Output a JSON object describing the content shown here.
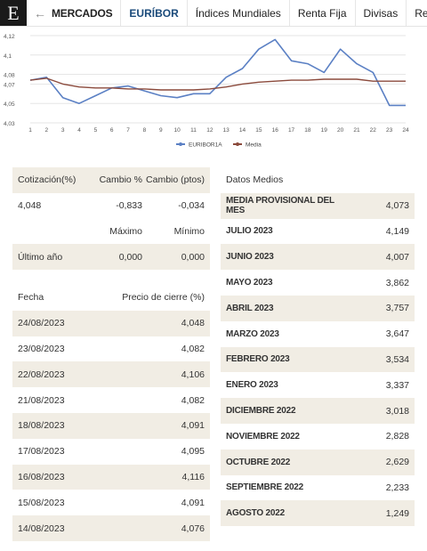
{
  "nav": {
    "logo": "E",
    "back": "←",
    "section": "MERCADOS",
    "items": [
      "EURÍBOR",
      "Índices Mundiales",
      "Renta Fija",
      "Divisas",
      "Recomendaciones"
    ]
  },
  "chart_data": {
    "type": "line",
    "x": [
      1,
      2,
      3,
      4,
      5,
      6,
      7,
      8,
      9,
      10,
      11,
      12,
      13,
      14,
      15,
      16,
      17,
      18,
      19,
      20,
      21,
      22,
      23,
      24
    ],
    "xticks": [
      "1",
      "2",
      "3",
      "4",
      "5",
      "6",
      "7",
      "8",
      "9",
      "10",
      "11",
      "12",
      "13",
      "14",
      "15",
      "16",
      "17",
      "18",
      "19",
      "20",
      "21",
      "22",
      "23",
      "24"
    ],
    "ylim": [
      4.03,
      4.12
    ],
    "yticks": [
      "4,12",
      "4,1",
      "4,08",
      "4,07",
      "4,05",
      "4,03"
    ],
    "ytick_values": [
      4.12,
      4.1,
      4.08,
      4.07,
      4.05,
      4.03
    ],
    "series": [
      {
        "name": "EURIBOR1A",
        "color": "#5b80c4",
        "values": [
          4.074,
          4.077,
          4.056,
          4.05,
          4.058,
          4.066,
          4.068,
          4.063,
          4.058,
          4.056,
          4.06,
          4.06,
          4.077,
          4.086,
          4.106,
          4.116,
          4.094,
          4.091,
          4.082,
          4.106,
          4.091,
          4.082,
          4.048,
          4.048
        ]
      },
      {
        "name": "Media",
        "color": "#8b4a3c",
        "values": [
          4.074,
          4.076,
          4.07,
          4.067,
          4.066,
          4.066,
          4.065,
          4.065,
          4.064,
          4.064,
          4.064,
          4.065,
          4.067,
          4.07,
          4.072,
          4.073,
          4.074,
          4.074,
          4.075,
          4.075,
          4.075,
          4.073,
          4.073,
          4.073
        ]
      }
    ],
    "legend": [
      "EURIBOR1A",
      "Media"
    ]
  },
  "quote": {
    "headers": [
      "Cotización(%)",
      "Cambio %",
      "Cambio (ptos)"
    ],
    "values": [
      "4,048",
      "-0,833",
      "-0,034"
    ],
    "range_headers": [
      "",
      "Máximo",
      "Mínimo"
    ],
    "range_row": [
      "Último año",
      "0,000",
      "0,000"
    ]
  },
  "history": {
    "headers": [
      "Fecha",
      "Precio de cierre (%)"
    ],
    "rows": [
      [
        "24/08/2023",
        "4,048"
      ],
      [
        "23/08/2023",
        "4,082"
      ],
      [
        "22/08/2023",
        "4,106"
      ],
      [
        "21/08/2023",
        "4,082"
      ],
      [
        "18/08/2023",
        "4,091"
      ],
      [
        "17/08/2023",
        "4,095"
      ],
      [
        "16/08/2023",
        "4,116"
      ],
      [
        "15/08/2023",
        "4,091"
      ],
      [
        "14/08/2023",
        "4,076"
      ]
    ]
  },
  "averages": {
    "header": "Datos Medios",
    "rows": [
      [
        "MEDIA PROVISIONAL DEL MES",
        "4,073"
      ],
      [
        "JULIO 2023",
        "4,149"
      ],
      [
        "JUNIO 2023",
        "4,007"
      ],
      [
        "MAYO 2023",
        "3,862"
      ],
      [
        "ABRIL 2023",
        "3,757"
      ],
      [
        "MARZO 2023",
        "3,647"
      ],
      [
        "FEBRERO 2023",
        "3,534"
      ],
      [
        "ENERO 2023",
        "3,337"
      ],
      [
        "DICIEMBRE 2022",
        "3,018"
      ],
      [
        "NOVIEMBRE 2022",
        "2,828"
      ],
      [
        "OCTUBRE 2022",
        "2,629"
      ],
      [
        "SEPTIEMBRE 2022",
        "2,233"
      ],
      [
        "AGOSTO 2022",
        "1,249"
      ]
    ]
  }
}
